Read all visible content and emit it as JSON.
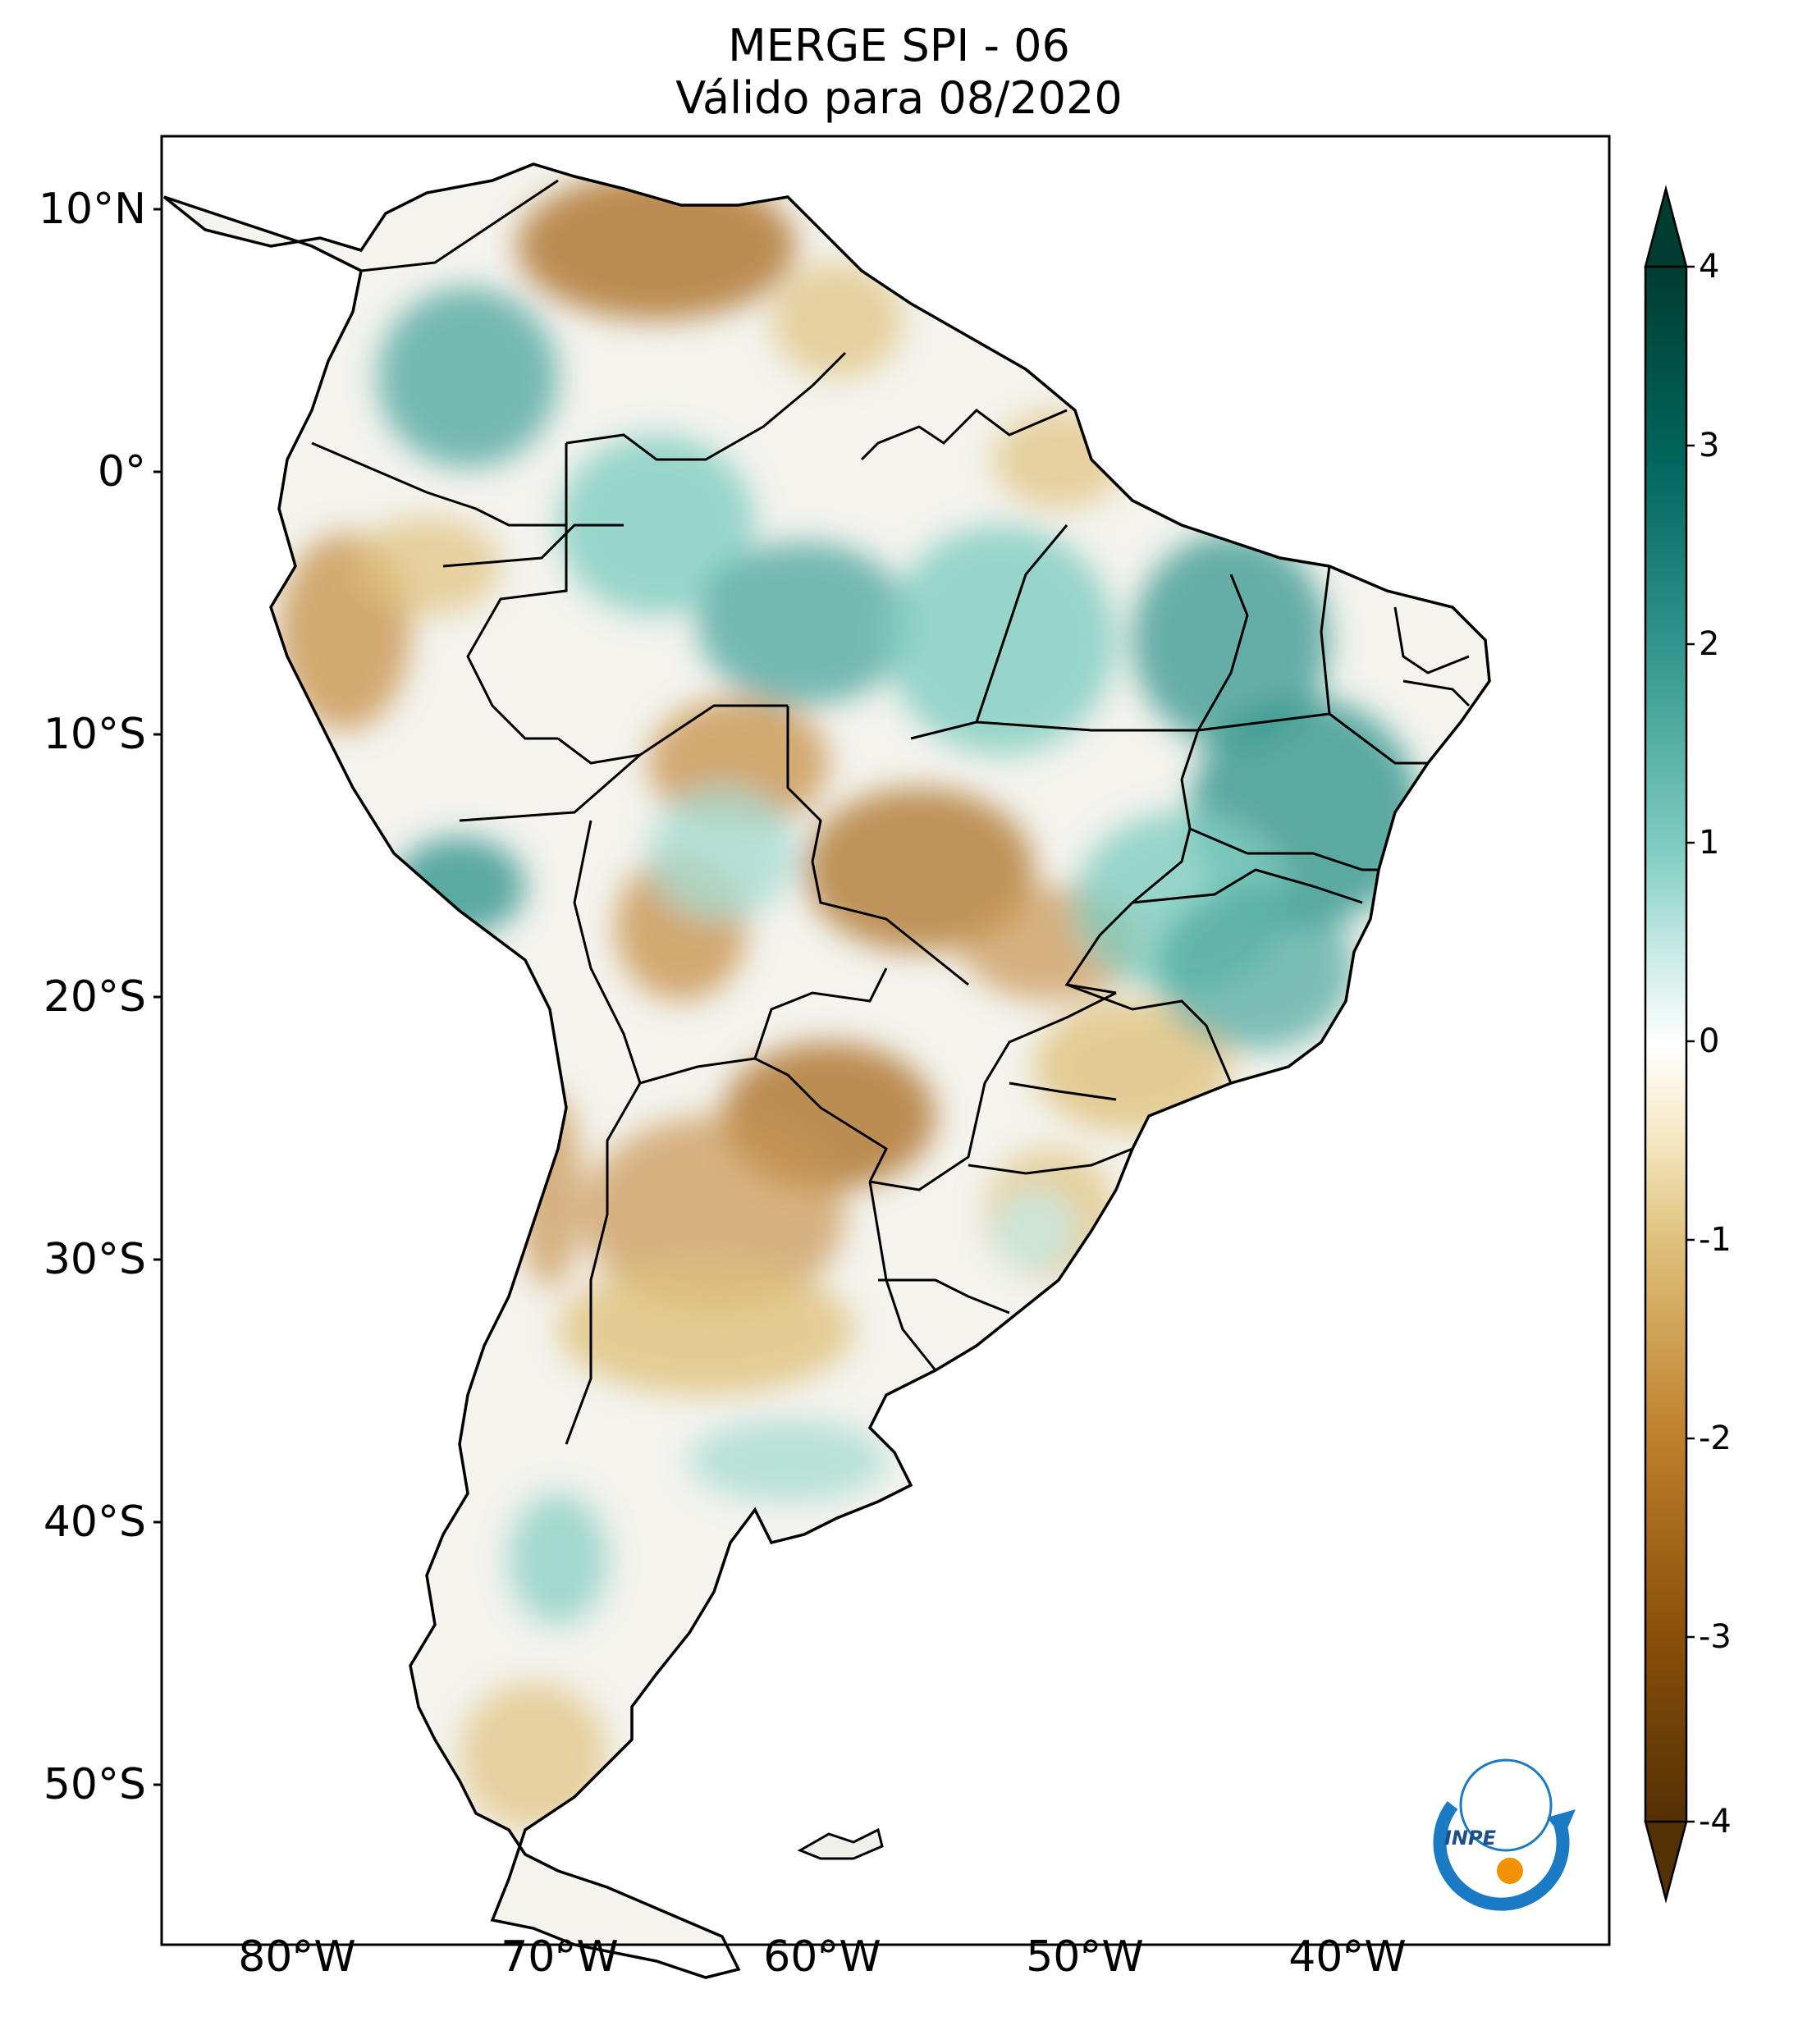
{
  "title": {
    "line1": "MERGE   SPI - 06",
    "line2": "Válido para 08/2020"
  },
  "map": {
    "lat_labels": [
      "10°N",
      "0°",
      "10°S",
      "20°S",
      "30°S",
      "40°S",
      "50°S"
    ],
    "lon_labels": [
      "80°W",
      "70°W",
      "60°W",
      "50°W",
      "40°W"
    ]
  },
  "colorbar": {
    "ticks": [
      "4",
      "3",
      "2",
      "1",
      "0",
      "-1",
      "-2",
      "-3",
      "-4"
    ],
    "colors": {
      "dark_brown": "#543005",
      "brown": "#8c510a",
      "tan": "#bf812d",
      "light_tan": "#dfc27d",
      "cream": "#f6e8c3",
      "white": "#ffffff",
      "light_teal": "#c7eae5",
      "teal": "#80cdc1",
      "mid_teal": "#35978f",
      "dark_teal": "#01665e",
      "deep_teal": "#003c30"
    }
  },
  "logo": {
    "text": "INPE",
    "colors": {
      "blue": "#1a7bc4",
      "orange": "#f39200"
    }
  }
}
